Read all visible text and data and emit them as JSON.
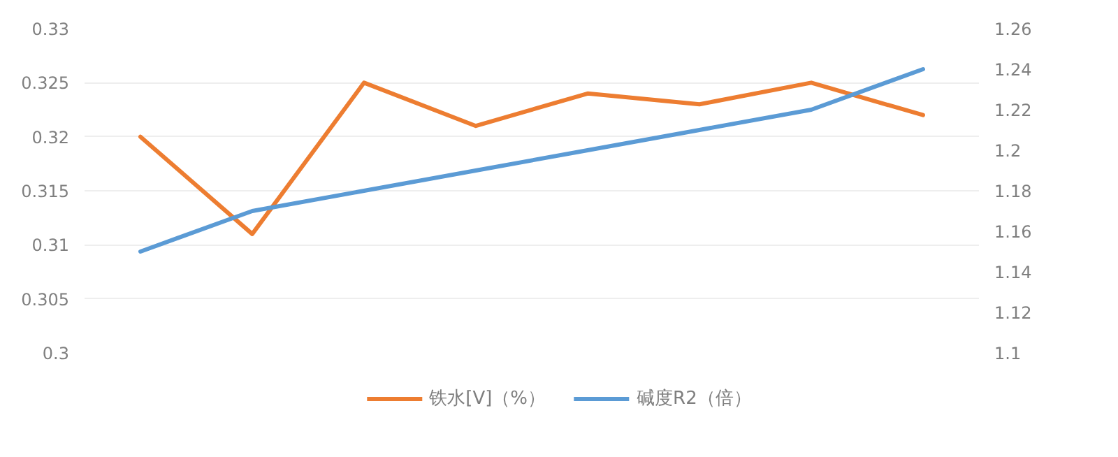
{
  "chart_data": {
    "type": "line",
    "categories": [
      null,
      null,
      null,
      null,
      null,
      null,
      null,
      null
    ],
    "series": [
      {
        "name": "铁水[V]（%）",
        "color": "#ed7d31",
        "values": [
          0.32,
          0.311,
          0.325,
          0.321,
          0.324,
          0.323,
          0.325,
          0.322
        ]
      },
      {
        "name": "碱度R2（倍）",
        "color": "#5b9bd5",
        "axis": "y2",
        "values": [
          1.15,
          1.17,
          1.18,
          1.19,
          1.2,
          1.21,
          1.22,
          1.24
        ]
      }
    ],
    "ylim": [
      0.3,
      0.33
    ],
    "yticks": [
      0.3,
      0.305,
      0.31,
      0.315,
      0.32,
      0.325,
      0.33
    ],
    "y2lim": [
      1.1,
      1.26
    ],
    "y2ticks": [
      1.1,
      1.12,
      1.14,
      1.16,
      1.18,
      1.2,
      1.22,
      1.24,
      1.26
    ],
    "grid": "y",
    "legend": "bottom",
    "marker": "none",
    "line_style": "solid"
  }
}
